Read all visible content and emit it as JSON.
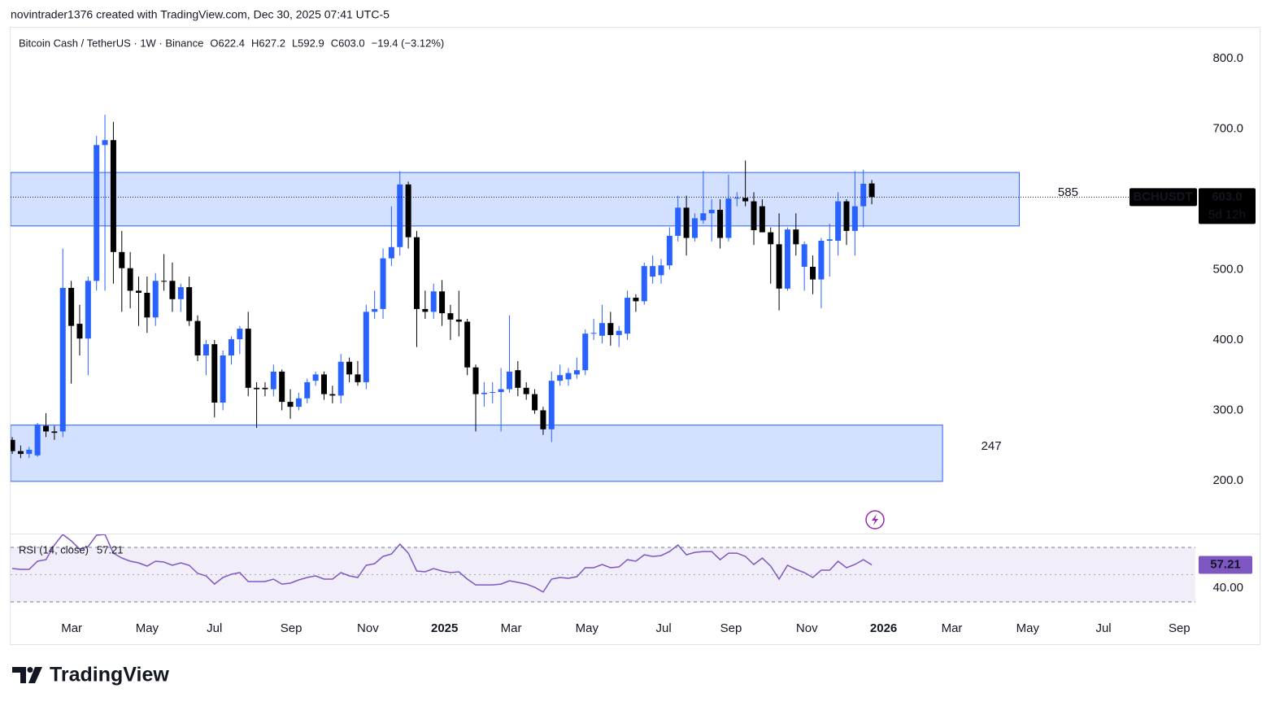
{
  "header": {
    "attribution": "novintrader1376 created with TradingView.com, Dec 30, 2025 07:41 UTC-5"
  },
  "chart_data": {
    "type": "candlestick",
    "title": "Bitcoin Cash / TetherUS · 1W · Binance",
    "ohlc_text": [
      "O622.4",
      "H627.2",
      "L592.9",
      "C603.0"
    ],
    "change_text": "−19.4 (−3.12%)",
    "up_color": "#2962ff",
    "down_color": "#000000",
    "candles": [
      [
        258,
        262,
        238,
        242
      ],
      [
        242,
        250,
        232,
        238
      ],
      [
        238,
        248,
        232,
        244
      ],
      [
        236,
        282,
        234,
        280
      ],
      [
        278,
        296,
        262,
        270
      ],
      [
        270,
        278,
        258,
        268
      ],
      [
        270,
        530,
        262,
        474
      ],
      [
        474,
        484,
        338,
        420
      ],
      [
        423,
        450,
        378,
        402
      ],
      [
        402,
        490,
        350,
        484
      ],
      [
        484,
        690,
        470,
        677
      ],
      [
        677,
        720,
        470,
        684
      ],
      [
        684,
        710,
        480,
        525
      ],
      [
        525,
        555,
        440,
        502
      ],
      [
        502,
        525,
        445,
        470
      ],
      [
        470,
        490,
        420,
        467
      ],
      [
        467,
        490,
        410,
        432
      ],
      [
        432,
        495,
        420,
        484
      ],
      [
        484,
        522,
        470,
        483
      ],
      [
        484,
        510,
        440,
        458
      ],
      [
        458,
        480,
        440,
        475
      ],
      [
        475,
        490,
        420,
        427
      ],
      [
        427,
        435,
        370,
        378
      ],
      [
        378,
        400,
        350,
        394
      ],
      [
        394,
        400,
        290,
        311
      ],
      [
        311,
        385,
        300,
        378
      ],
      [
        378,
        405,
        365,
        401
      ],
      [
        401,
        420,
        380,
        416
      ],
      [
        416,
        440,
        320,
        332
      ],
      [
        332,
        340,
        275,
        330
      ],
      [
        332,
        340,
        320,
        330
      ],
      [
        330,
        365,
        320,
        355
      ],
      [
        355,
        358,
        300,
        312
      ],
      [
        312,
        330,
        288,
        305
      ],
      [
        305,
        325,
        300,
        317
      ],
      [
        317,
        345,
        310,
        340
      ],
      [
        342,
        355,
        335,
        351
      ],
      [
        351,
        355,
        315,
        323
      ],
      [
        323,
        335,
        310,
        321
      ],
      [
        321,
        380,
        310,
        369
      ],
      [
        369,
        375,
        340,
        351
      ],
      [
        351,
        370,
        335,
        340
      ],
      [
        340,
        450,
        330,
        440
      ],
      [
        440,
        470,
        430,
        444
      ],
      [
        444,
        530,
        430,
        516
      ],
      [
        516,
        590,
        505,
        532
      ],
      [
        532,
        640,
        520,
        621
      ],
      [
        621,
        625,
        530,
        546
      ],
      [
        546,
        555,
        390,
        444
      ],
      [
        444,
        470,
        430,
        440
      ],
      [
        440,
        480,
        430,
        469
      ],
      [
        469,
        485,
        420,
        438
      ],
      [
        438,
        450,
        400,
        429
      ],
      [
        429,
        470,
        405,
        426
      ],
      [
        426,
        430,
        350,
        361
      ],
      [
        361,
        365,
        270,
        323
      ],
      [
        323,
        340,
        305,
        325
      ],
      [
        325,
        340,
        310,
        326
      ],
      [
        326,
        360,
        270,
        330
      ],
      [
        330,
        435,
        325,
        355
      ],
      [
        357,
        370,
        320,
        332
      ],
      [
        332,
        340,
        315,
        323
      ],
      [
        323,
        330,
        295,
        300
      ],
      [
        300,
        305,
        265,
        273
      ],
      [
        273,
        355,
        255,
        342
      ],
      [
        342,
        365,
        335,
        350
      ],
      [
        344,
        360,
        335,
        353
      ],
      [
        351,
        375,
        345,
        357
      ],
      [
        357,
        415,
        350,
        409
      ],
      [
        410,
        430,
        400,
        410
      ],
      [
        406,
        450,
        395,
        424
      ],
      [
        424,
        440,
        392,
        407
      ],
      [
        407,
        420,
        390,
        413
      ],
      [
        409,
        470,
        400,
        460
      ],
      [
        460,
        465,
        440,
        455
      ],
      [
        455,
        510,
        450,
        505
      ],
      [
        490,
        520,
        480,
        505
      ],
      [
        492,
        515,
        480,
        506
      ],
      [
        506,
        560,
        500,
        548
      ],
      [
        548,
        605,
        540,
        588
      ],
      [
        588,
        605,
        520,
        545
      ],
      [
        545,
        580,
        540,
        573
      ],
      [
        570,
        640,
        565,
        580
      ],
      [
        580,
        600,
        540,
        585
      ],
      [
        585,
        600,
        530,
        545
      ],
      [
        545,
        635,
        540,
        601
      ],
      [
        601,
        610,
        590,
        602
      ],
      [
        602,
        655,
        590,
        597
      ],
      [
        597,
        610,
        535,
        556
      ],
      [
        590,
        600,
        555,
        553
      ],
      [
        553,
        560,
        480,
        536
      ],
      [
        536,
        580,
        442,
        473
      ],
      [
        473,
        560,
        470,
        557
      ],
      [
        557,
        580,
        520,
        536
      ],
      [
        504,
        540,
        470,
        536
      ],
      [
        504,
        520,
        465,
        486
      ],
      [
        486,
        545,
        445,
        541
      ],
      [
        541,
        565,
        490,
        543
      ],
      [
        541,
        610,
        520,
        597
      ],
      [
        597,
        600,
        535,
        555
      ],
      [
        555,
        640,
        520,
        590
      ],
      [
        590,
        642,
        560,
        622
      ],
      [
        622.4,
        627.2,
        592.9,
        603.0
      ]
    ],
    "xlim": [
      -0.2,
      140.4
    ],
    "xticks": [
      {
        "value": 7.05,
        "label": "Mar"
      },
      {
        "value": 16.0,
        "label": "May"
      },
      {
        "value": 24.0,
        "label": "Jul"
      },
      {
        "value": 33.1,
        "label": "Sep"
      },
      {
        "value": 42.2,
        "label": "Nov"
      },
      {
        "value": 51.3,
        "label": "2025"
      },
      {
        "value": 59.2,
        "label": "Mar"
      },
      {
        "value": 68.2,
        "label": "May"
      },
      {
        "value": 77.3,
        "label": "Jul"
      },
      {
        "value": 85.3,
        "label": "Sep"
      },
      {
        "value": 94.3,
        "label": "Nov"
      },
      {
        "value": 103.4,
        "label": "2026"
      },
      {
        "value": 111.5,
        "label": "Mar"
      },
      {
        "value": 120.5,
        "label": "May"
      },
      {
        "value": 129.5,
        "label": "Jul"
      },
      {
        "value": 138.5,
        "label": "Sep"
      }
    ],
    "ylim": [
      126,
      845
    ],
    "yticks": [
      {
        "value": 200,
        "label": "200.0"
      },
      {
        "value": 300,
        "label": "300.0"
      },
      {
        "value": 400,
        "label": "400.0"
      },
      {
        "value": 500,
        "label": "500.0"
      },
      {
        "value": 700,
        "label": "700.0"
      },
      {
        "value": 800,
        "label": "800.0"
      }
    ],
    "zones": [
      {
        "label": "585",
        "top": 638,
        "bottom": 562,
        "end": 119.5
      },
      {
        "label": "247",
        "top": 279,
        "bottom": 199,
        "end": 110.4
      }
    ],
    "symbol": "BCHUSDT",
    "last_price_label": "603.0",
    "countdown": "5d 12h",
    "rsi": {
      "title": "RSI (14, close)",
      "color": "#7e57c2",
      "ylim": [
        24,
        79.6
      ],
      "yticks": [
        {
          "value": 40,
          "label": "40.00"
        }
      ],
      "band": [
        30,
        70
      ],
      "values": [
        54.5,
        53.9,
        53.9,
        59.9,
        61.0,
        71.8,
        79.6,
        74.8,
        68.8,
        70.6,
        79.0,
        79.6,
        65.8,
        62.2,
        59.9,
        58.7,
        56.3,
        59.9,
        59.3,
        56.9,
        58.7,
        56.9,
        50.9,
        49.1,
        43.1,
        47.9,
        50.3,
        51.5,
        44.9,
        44.9,
        44.9,
        46.7,
        43.1,
        43.7,
        46.1,
        47.9,
        49.1,
        46.7,
        46.7,
        51.5,
        49.1,
        47.9,
        56.9,
        58.1,
        63.4,
        65.2,
        72.4,
        65.8,
        52.7,
        52.1,
        54.5,
        52.7,
        51.5,
        52.1,
        46.7,
        42.5,
        42.5,
        42.5,
        43.1,
        45.5,
        44.3,
        43.1,
        40.7,
        37.2,
        46.7,
        47.9,
        47.3,
        48.5,
        55.1,
        55.1,
        57.5,
        55.1,
        55.7,
        61.0,
        59.9,
        64.6,
        63.4,
        64.0,
        67.0,
        71.8,
        64.6,
        66.4,
        67.0,
        67.0,
        61.0,
        65.8,
        65.8,
        63.4,
        57.5,
        62.2,
        56.3,
        46.7,
        56.9,
        53.9,
        51.5,
        47.9,
        53.3,
        53.3,
        59.9,
        55.1,
        57.5,
        61.0,
        57.21
      ]
    }
  },
  "footer": {
    "brand": "TradingView"
  }
}
